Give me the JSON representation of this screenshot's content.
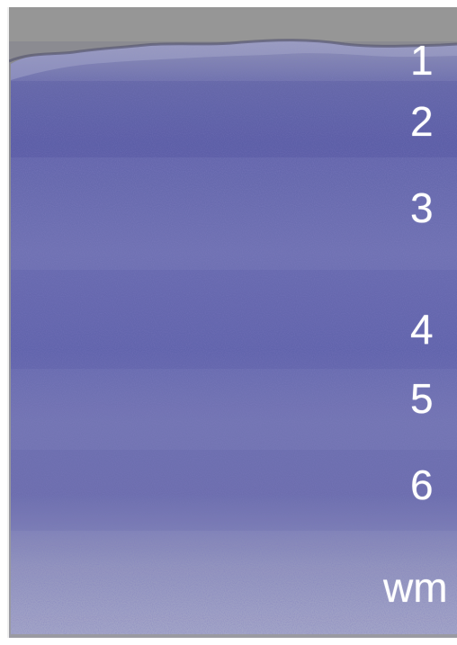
{
  "image": {
    "subject": "nissl-stained-cortical-section",
    "colors": {
      "background": "#8f8f94",
      "edge": "#ffffff",
      "stain_dark": "#2c2a86",
      "stain_mid": "#5a5cb1",
      "stain_light": "#c8c8e8",
      "neuropil": "#a7a7c1"
    }
  },
  "labels": {
    "layer_1": "1",
    "layer_2": "2",
    "layer_3": "3",
    "layer_4": "4",
    "layer_5": "5",
    "layer_6": "6",
    "white_matter": "wm"
  }
}
